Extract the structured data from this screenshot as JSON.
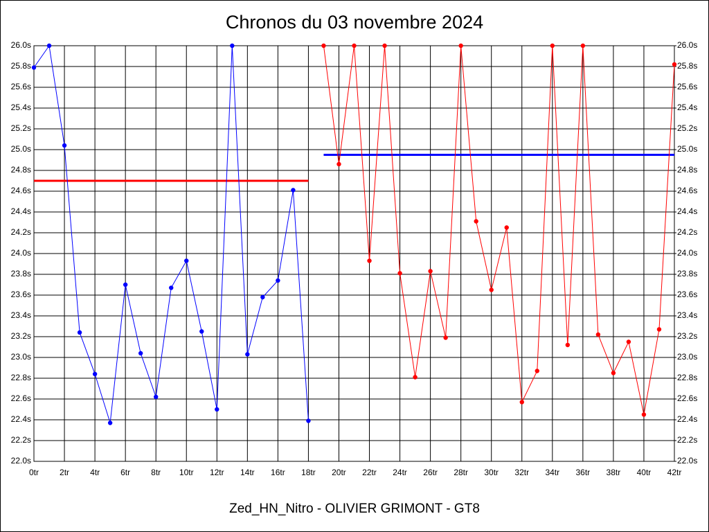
{
  "chart_data": {
    "type": "line",
    "title": "Chronos du 03 novembre 2024",
    "x_label": "Zed_HN_Nitro - OLIVIER GRIMONT - GT8",
    "xlim": [
      0,
      42
    ],
    "xticks": [
      {
        "value": 0,
        "label": "0tr"
      },
      {
        "value": 2,
        "label": "2tr"
      },
      {
        "value": 4,
        "label": "4tr"
      },
      {
        "value": 6,
        "label": "6tr"
      },
      {
        "value": 8,
        "label": "8tr"
      },
      {
        "value": 10,
        "label": "10tr"
      },
      {
        "value": 12,
        "label": "12tr"
      },
      {
        "value": 14,
        "label": "14tr"
      },
      {
        "value": 16,
        "label": "16tr"
      },
      {
        "value": 18,
        "label": "18tr"
      },
      {
        "value": 20,
        "label": "20tr"
      },
      {
        "value": 22,
        "label": "22tr"
      },
      {
        "value": 24,
        "label": "24tr"
      },
      {
        "value": 26,
        "label": "26tr"
      },
      {
        "value": 28,
        "label": "28tr"
      },
      {
        "value": 30,
        "label": "30tr"
      },
      {
        "value": 32,
        "label": "32tr"
      },
      {
        "value": 34,
        "label": "34tr"
      },
      {
        "value": 36,
        "label": "36tr"
      },
      {
        "value": 38,
        "label": "38tr"
      },
      {
        "value": 40,
        "label": "40tr"
      },
      {
        "value": 42,
        "label": "42tr"
      }
    ],
    "ylim": [
      22.0,
      26.0
    ],
    "yticks": [
      {
        "value": 22.0,
        "label": "22.0s"
      },
      {
        "value": 22.2,
        "label": "22.2s"
      },
      {
        "value": 22.4,
        "label": "22.4s"
      },
      {
        "value": 22.6,
        "label": "22.6s"
      },
      {
        "value": 22.8,
        "label": "22.8s"
      },
      {
        "value": 23.0,
        "label": "23.0s"
      },
      {
        "value": 23.2,
        "label": "23.2s"
      },
      {
        "value": 23.4,
        "label": "23.4s"
      },
      {
        "value": 23.6,
        "label": "23.6s"
      },
      {
        "value": 23.8,
        "label": "23.8s"
      },
      {
        "value": 24.0,
        "label": "24.0s"
      },
      {
        "value": 24.2,
        "label": "24.2s"
      },
      {
        "value": 24.4,
        "label": "24.4s"
      },
      {
        "value": 24.6,
        "label": "24.6s"
      },
      {
        "value": 24.8,
        "label": "24.8s"
      },
      {
        "value": 25.0,
        "label": "25.0s"
      },
      {
        "value": 25.2,
        "label": "25.2s"
      },
      {
        "value": 25.4,
        "label": "25.4s"
      },
      {
        "value": 25.6,
        "label": "25.6s"
      },
      {
        "value": 25.8,
        "label": "25.8s"
      },
      {
        "value": 26.0,
        "label": "26.0s"
      }
    ],
    "y2lim": [
      22.0,
      26.0
    ],
    "y2ticks": [
      {
        "value": 22.0,
        "label": "22.0s"
      },
      {
        "value": 22.2,
        "label": "22.2s"
      },
      {
        "value": 22.4,
        "label": "22.4s"
      },
      {
        "value": 22.6,
        "label": "22.6s"
      },
      {
        "value": 22.8,
        "label": "22.8s"
      },
      {
        "value": 23.0,
        "label": "23.0s"
      },
      {
        "value": 23.2,
        "label": "23.2s"
      },
      {
        "value": 23.4,
        "label": "23.4s"
      },
      {
        "value": 23.6,
        "label": "23.6s"
      },
      {
        "value": 23.8,
        "label": "23.8s"
      },
      {
        "value": 24.0,
        "label": "24.0s"
      },
      {
        "value": 24.2,
        "label": "24.2s"
      },
      {
        "value": 24.4,
        "label": "24.4s"
      },
      {
        "value": 24.6,
        "label": "24.6s"
      },
      {
        "value": 24.8,
        "label": "24.8s"
      },
      {
        "value": 25.0,
        "label": "25.0s"
      },
      {
        "value": 25.2,
        "label": "25.2s"
      },
      {
        "value": 25.4,
        "label": "25.4s"
      },
      {
        "value": 25.6,
        "label": "25.6s"
      },
      {
        "value": 25.8,
        "label": "25.8s"
      },
      {
        "value": 26.0,
        "label": "26.0s"
      }
    ],
    "grid": true,
    "series": [
      {
        "color": "#0000ff",
        "x": [
          0,
          1,
          2,
          3,
          4,
          5,
          6,
          7,
          8,
          9,
          10,
          11,
          12,
          13,
          14,
          15,
          16,
          17,
          18
        ],
        "values": [
          25.79,
          26.0,
          25.04,
          23.24,
          22.84,
          22.37,
          23.7,
          23.04,
          22.62,
          23.67,
          23.93,
          23.25,
          22.5,
          26.0,
          23.03,
          23.58,
          23.74,
          24.61,
          22.39
        ]
      },
      {
        "color": "#ff0000",
        "x": [
          19,
          20,
          21,
          22,
          23,
          24,
          25,
          26,
          27,
          28,
          29,
          30,
          31,
          32,
          33,
          34,
          35,
          36,
          37,
          38,
          39,
          40,
          41,
          42
        ],
        "values": [
          26.0,
          24.86,
          26.0,
          23.93,
          26.0,
          23.81,
          22.81,
          23.83,
          23.19,
          26.0,
          24.31,
          23.65,
          24.25,
          22.57,
          22.87,
          26.0,
          23.12,
          26.0,
          23.22,
          22.85,
          23.15,
          22.45,
          23.27,
          25.82
        ]
      }
    ],
    "reference_lines": [
      {
        "color": "#ff0000",
        "x": [
          0,
          18
        ],
        "values": [
          24.7,
          24.7
        ]
      },
      {
        "color": "#0000ff",
        "x": [
          19,
          42
        ],
        "values": [
          24.95,
          24.95
        ]
      }
    ]
  }
}
